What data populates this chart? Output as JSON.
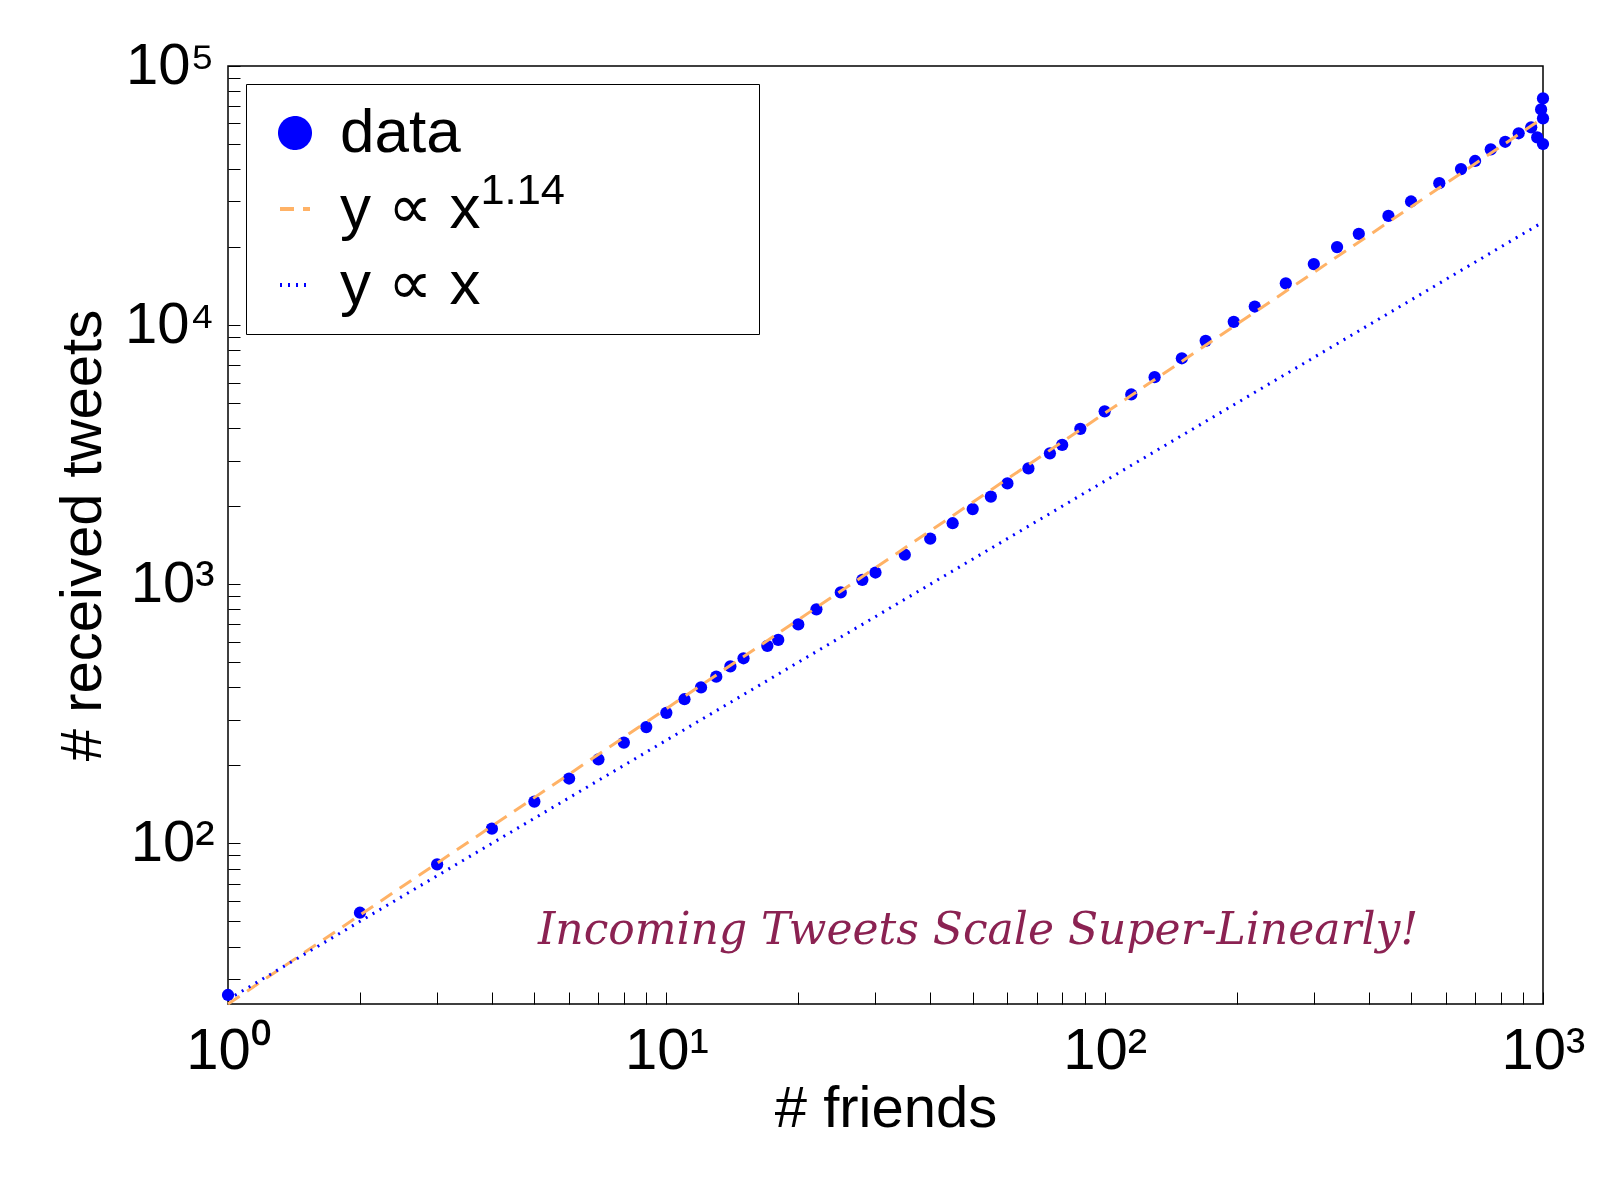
{
  "chart_data": {
    "type": "scatter",
    "xlabel": "# friends",
    "ylabel": "# received tweets",
    "log": "xy",
    "grid": false,
    "legend": "top left",
    "xlim": [
      1,
      1000
    ],
    "ylim": [
      24,
      100000
    ],
    "xticks": [
      {
        "value": 1,
        "label": "10⁰"
      },
      {
        "value": 2,
        "label": null
      },
      {
        "value": 3,
        "label": null
      },
      {
        "value": 4,
        "label": null
      },
      {
        "value": 5,
        "label": null
      },
      {
        "value": 6,
        "label": null
      },
      {
        "value": 7,
        "label": null
      },
      {
        "value": 8,
        "label": null
      },
      {
        "value": 9,
        "label": null
      },
      {
        "value": 10,
        "label": "10¹"
      },
      {
        "value": 20,
        "label": null
      },
      {
        "value": 30,
        "label": null
      },
      {
        "value": 40,
        "label": null
      },
      {
        "value": 50,
        "label": null
      },
      {
        "value": 60,
        "label": null
      },
      {
        "value": 70,
        "label": null
      },
      {
        "value": 80,
        "label": null
      },
      {
        "value": 90,
        "label": null
      },
      {
        "value": 100,
        "label": "10²"
      },
      {
        "value": 200,
        "label": null
      },
      {
        "value": 300,
        "label": null
      },
      {
        "value": 400,
        "label": null
      },
      {
        "value": 500,
        "label": null
      },
      {
        "value": 600,
        "label": null
      },
      {
        "value": 700,
        "label": null
      },
      {
        "value": 800,
        "label": null
      },
      {
        "value": 900,
        "label": null
      },
      {
        "value": 1000,
        "label": "10³"
      }
    ],
    "yticks": [
      {
        "value": 30,
        "label": null
      },
      {
        "value": 40,
        "label": null
      },
      {
        "value": 50,
        "label": null
      },
      {
        "value": 60,
        "label": null
      },
      {
        "value": 70,
        "label": null
      },
      {
        "value": 80,
        "label": null
      },
      {
        "value": 90,
        "label": null
      },
      {
        "value": 100,
        "label": "10²"
      },
      {
        "value": 200,
        "label": null
      },
      {
        "value": 300,
        "label": null
      },
      {
        "value": 400,
        "label": null
      },
      {
        "value": 500,
        "label": null
      },
      {
        "value": 600,
        "label": null
      },
      {
        "value": 700,
        "label": null
      },
      {
        "value": 800,
        "label": null
      },
      {
        "value": 900,
        "label": null
      },
      {
        "value": 1000,
        "label": "10³"
      },
      {
        "value": 2000,
        "label": null
      },
      {
        "value": 3000,
        "label": null
      },
      {
        "value": 4000,
        "label": null
      },
      {
        "value": 5000,
        "label": null
      },
      {
        "value": 6000,
        "label": null
      },
      {
        "value": 7000,
        "label": null
      },
      {
        "value": 8000,
        "label": null
      },
      {
        "value": 9000,
        "label": null
      },
      {
        "value": 10000,
        "label": "10⁴"
      },
      {
        "value": 20000,
        "label": null
      },
      {
        "value": 30000,
        "label": null
      },
      {
        "value": 40000,
        "label": null
      },
      {
        "value": 50000,
        "label": null
      },
      {
        "value": 60000,
        "label": null
      },
      {
        "value": 70000,
        "label": null
      },
      {
        "value": 80000,
        "label": null
      },
      {
        "value": 90000,
        "label": null
      },
      {
        "value": 100000,
        "label": "10⁵"
      }
    ],
    "annotations": [
      "Incoming Tweets Scale Super-Linearly!"
    ],
    "series": [
      {
        "name": "data",
        "marker": "circle",
        "color": "#0000ff",
        "x": [
          1,
          2,
          3,
          4,
          5,
          6,
          7,
          8,
          9,
          10,
          11,
          12,
          13,
          14,
          15,
          17,
          18,
          20,
          22,
          25,
          28,
          30,
          35,
          40,
          45,
          50,
          55,
          60,
          67,
          75,
          80,
          88,
          100,
          115,
          130,
          150,
          170,
          197,
          220,
          259,
          300,
          339,
          380,
          444,
          500,
          580,
          650,
          700,
          760,
          820,
          880,
          940,
          970,
          990,
          1000,
          1000,
          1000
        ],
        "values": [
          26,
          54,
          83,
          114,
          145,
          178,
          211,
          245,
          281,
          319,
          360,
          400,
          440,
          482,
          518,
          578,
          610,
          700,
          800,
          930,
          1040,
          1110,
          1300,
          1500,
          1720,
          1950,
          2180,
          2450,
          2800,
          3200,
          3450,
          3980,
          4650,
          5400,
          6300,
          7450,
          8700,
          10300,
          11800,
          14500,
          17200,
          20000,
          22500,
          26400,
          30000,
          35300,
          40000,
          43000,
          47700,
          51000,
          55000,
          58000,
          53000,
          68000,
          50000,
          62800,
          75000
        ]
      },
      {
        "name": "y ∝ x$^{1.14}$",
        "type": "line",
        "line_style": "dashed",
        "color": "#ffb266",
        "x": [
          1,
          1000
        ],
        "values": [
          24,
          63000
        ]
      },
      {
        "name": "y ∝ x",
        "type": "line",
        "line_style": "dotted",
        "color": "#0000ff",
        "x": [
          1,
          1000
        ],
        "values": [
          25,
          25000
        ]
      }
    ]
  }
}
